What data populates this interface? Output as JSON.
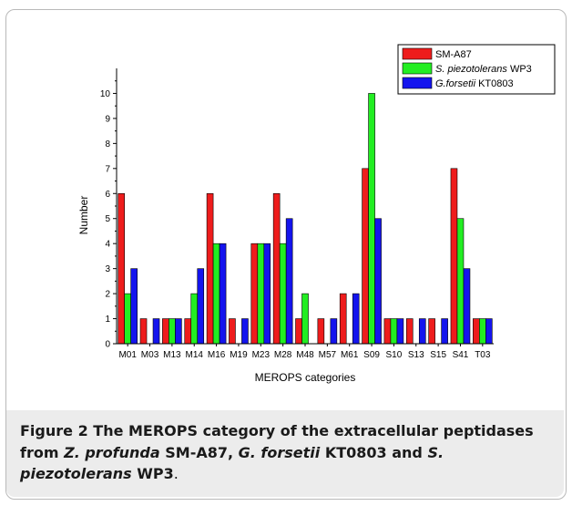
{
  "figure": {
    "caption": {
      "label": "Figure 2",
      "text_parts": [
        {
          "text": " The MEROPS category of the extracellular peptidases from ",
          "italic": false
        },
        {
          "text": "Z. profunda",
          "italic": true
        },
        {
          "text": " SM-A87, ",
          "italic": false
        },
        {
          "text": "G. forsetii",
          "italic": true
        },
        {
          "text": " KT0803 and ",
          "italic": false
        },
        {
          "text": "S. piezotolerans",
          "italic": true
        },
        {
          "text": " WP3",
          "italic": false
        }
      ],
      "end_punct": "."
    }
  },
  "chart_data": {
    "type": "bar",
    "title": "",
    "xlabel": "MEROPS categories",
    "ylabel": "Number",
    "ylim": [
      0,
      11
    ],
    "yticks": [
      0,
      1,
      2,
      3,
      4,
      5,
      6,
      7,
      8,
      9,
      10
    ],
    "grid": false,
    "legend_position": "top-right",
    "categories": [
      "M01",
      "M03",
      "M13",
      "M14",
      "M16",
      "M19",
      "M23",
      "M28",
      "M48",
      "M57",
      "M61",
      "S09",
      "S10",
      "S13",
      "S15",
      "S41",
      "T03"
    ],
    "series": [
      {
        "name": "SM-A87",
        "legend_parts": [
          {
            "text": "SM-A87",
            "italic": false
          }
        ],
        "color": "#ee1c1c",
        "values": [
          6,
          1,
          1,
          1,
          6,
          1,
          4,
          6,
          1,
          1,
          2,
          7,
          1,
          1,
          1,
          7,
          1
        ]
      },
      {
        "name": "S. piezotolerans WP3",
        "legend_parts": [
          {
            "text": "S. piezotolerans",
            "italic": true
          },
          {
            "text": " WP3",
            "italic": false
          }
        ],
        "color": "#22ee22",
        "values": [
          2,
          0,
          1,
          2,
          4,
          0,
          4,
          4,
          2,
          0,
          0,
          10,
          1,
          0,
          0,
          5,
          1
        ]
      },
      {
        "name": "G.forsetii KT0803",
        "legend_parts": [
          {
            "text": "G.forsetii",
            "italic": true
          },
          {
            "text": " KT0803",
            "italic": false
          }
        ],
        "color": "#1414ee",
        "values": [
          3,
          1,
          1,
          3,
          4,
          1,
          4,
          5,
          0,
          1,
          2,
          5,
          1,
          1,
          1,
          3,
          1
        ]
      }
    ]
  }
}
